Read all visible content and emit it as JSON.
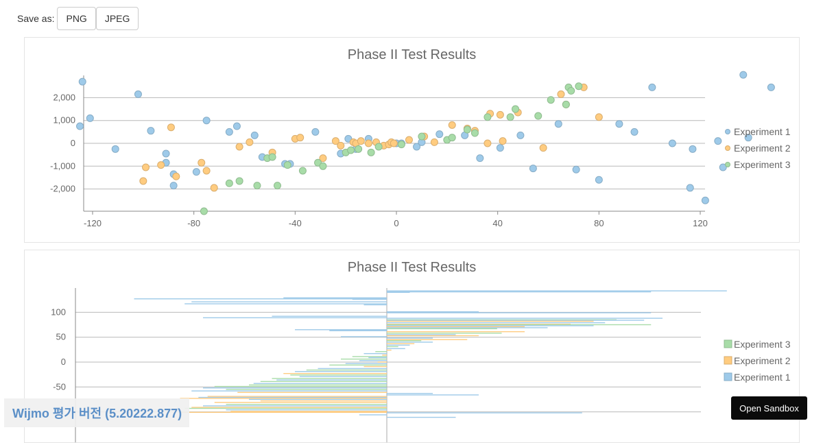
{
  "toolbar": {
    "save_label": "Save as:",
    "png_label": "PNG",
    "jpeg_label": "JPEG"
  },
  "watermark": "Wijmo 평가 버전 (5.20222.877)",
  "sandbox_label": "Open Sandbox",
  "colors": {
    "experiment1": "#9ecae9",
    "experiment2": "#ffcc80",
    "experiment3": "#a8dca8"
  },
  "chart_data": [
    {
      "type": "scatter",
      "title": "Phase II Test Results",
      "xlim": [
        -125,
        148
      ],
      "ylim": [
        -3000,
        3000
      ],
      "x_ticks": [
        "-120",
        "-80",
        "-40",
        "0",
        "40",
        "80",
        "120"
      ],
      "x_tick_values": [
        -120,
        -80,
        -40,
        0,
        40,
        80,
        120
      ],
      "y_ticks": [
        "2,000",
        "1,000",
        "0",
        "-1,000",
        "-2,000"
      ],
      "y_tick_values": [
        2000,
        1000,
        0,
        -1000,
        -2000
      ],
      "legend_position": "right",
      "series": [
        {
          "name": "Experiment 1",
          "color": "#9ecae9",
          "points": [
            [
              -124,
              2700
            ],
            [
              -125,
              750
            ],
            [
              -121,
              1100
            ],
            [
              -111,
              -250
            ],
            [
              -102,
              2150
            ],
            [
              -97,
              550
            ],
            [
              -91,
              -450
            ],
            [
              -91,
              -850
            ],
            [
              -88,
              -1850
            ],
            [
              -88,
              -1350
            ],
            [
              -79,
              -1250
            ],
            [
              -75,
              1000
            ],
            [
              -66,
              500
            ],
            [
              -63,
              750
            ],
            [
              -56,
              350
            ],
            [
              -53,
              -600
            ],
            [
              -44,
              -900
            ],
            [
              -42,
              -900
            ],
            [
              -32,
              500
            ],
            [
              -22,
              -450
            ],
            [
              -19,
              200
            ],
            [
              -16,
              -250
            ],
            [
              -11,
              200
            ],
            [
              0,
              0
            ],
            [
              2,
              0
            ],
            [
              8,
              -150
            ],
            [
              10,
              50
            ],
            [
              17,
              400
            ],
            [
              27,
              350
            ],
            [
              33,
              -650
            ],
            [
              41,
              -200
            ],
            [
              49,
              350
            ],
            [
              54,
              -1100
            ],
            [
              64,
              850
            ],
            [
              71,
              -1150
            ],
            [
              80,
              -1600
            ],
            [
              88,
              850
            ],
            [
              94,
              500
            ],
            [
              101,
              2450
            ],
            [
              109,
              0
            ],
            [
              116,
              -1950
            ],
            [
              117,
              -250
            ],
            [
              122,
              -2500
            ],
            [
              127,
              100
            ],
            [
              129,
              -1050
            ],
            [
              137,
              3000
            ],
            [
              139,
              250
            ],
            [
              148,
              2450
            ]
          ]
        },
        {
          "name": "Experiment 2",
          "color": "#ffcc80",
          "points": [
            [
              -100,
              -1650
            ],
            [
              -99,
              -1050
            ],
            [
              -93,
              -950
            ],
            [
              -89,
              700
            ],
            [
              -87,
              -1450
            ],
            [
              -77,
              -850
            ],
            [
              -75,
              -1200
            ],
            [
              -72,
              -1950
            ],
            [
              -62,
              -150
            ],
            [
              -58,
              50
            ],
            [
              -49,
              -400
            ],
            [
              -40,
              200
            ],
            [
              -38,
              250
            ],
            [
              -29,
              -650
            ],
            [
              -24,
              100
            ],
            [
              -22,
              -100
            ],
            [
              -17,
              50
            ],
            [
              -16,
              0
            ],
            [
              -14,
              100
            ],
            [
              -11,
              0
            ],
            [
              -8,
              50
            ],
            [
              -5,
              -100
            ],
            [
              -3,
              -50
            ],
            [
              -2,
              50
            ],
            [
              -1,
              0
            ],
            [
              5,
              150
            ],
            [
              11,
              300
            ],
            [
              15,
              50
            ],
            [
              22,
              800
            ],
            [
              28,
              650
            ],
            [
              31,
              550
            ],
            [
              36,
              0
            ],
            [
              37,
              1300
            ],
            [
              41,
              1250
            ],
            [
              42,
              100
            ],
            [
              48,
              1350
            ],
            [
              58,
              -200
            ],
            [
              65,
              2150
            ],
            [
              67,
              1700
            ],
            [
              74,
              2450
            ],
            [
              80,
              1150
            ]
          ]
        },
        {
          "name": "Experiment 3",
          "color": "#a8dca8",
          "points": [
            [
              -76,
              -3000
            ],
            [
              -66,
              -1750
            ],
            [
              -62,
              -1650
            ],
            [
              -55,
              -1850
            ],
            [
              -51,
              -650
            ],
            [
              -49,
              -600
            ],
            [
              -47,
              -1850
            ],
            [
              -43,
              -950
            ],
            [
              -37,
              -1200
            ],
            [
              -31,
              -850
            ],
            [
              -29,
              -1000
            ],
            [
              -20,
              -400
            ],
            [
              -18,
              -300
            ],
            [
              -15,
              -250
            ],
            [
              -10,
              -400
            ],
            [
              -7,
              -150
            ],
            [
              2,
              -50
            ],
            [
              10,
              300
            ],
            [
              20,
              150
            ],
            [
              22,
              250
            ],
            [
              28,
              600
            ],
            [
              31,
              450
            ],
            [
              36,
              1150
            ],
            [
              45,
              1150
            ],
            [
              47,
              1500
            ],
            [
              56,
              1200
            ],
            [
              61,
              1900
            ],
            [
              67,
              1700
            ],
            [
              68,
              2450
            ],
            [
              69,
              2300
            ],
            [
              72,
              2500
            ]
          ]
        }
      ]
    },
    {
      "type": "bar",
      "title": "Phase II Test Results",
      "orientation": "horizontal",
      "xlim": [
        -125,
        148
      ],
      "ylim": [
        -110,
        150
      ],
      "y_ticks": [
        "100",
        "50",
        "0",
        "-50"
      ],
      "y_tick_values": [
        100,
        50,
        0,
        -50
      ],
      "legend_position": "right",
      "series": [
        {
          "name": "Experiment 3",
          "color": "#a8dca8"
        },
        {
          "name": "Experiment 2",
          "color": "#ffcc80"
        },
        {
          "name": "Experiment 1",
          "color": "#9ecae9"
        }
      ],
      "bars": [
        [
          148,
          144,
          1
        ],
        [
          115,
          142,
          1
        ],
        [
          10,
          141,
          1
        ],
        [
          -45,
          130,
          1
        ],
        [
          -110,
          128,
          1
        ],
        [
          -15,
          127,
          1
        ],
        [
          -85,
          122,
          1
        ],
        [
          -88,
          118,
          1
        ],
        [
          -10,
          116,
          1
        ],
        [
          40,
          102,
          1
        ],
        [
          115,
          100,
          1
        ],
        [
          -50,
          93,
          1
        ],
        [
          -80,
          90,
          1
        ],
        [
          120,
          89,
          1
        ],
        [
          100,
          86,
          3
        ],
        [
          112,
          85,
          1
        ],
        [
          90,
          83,
          2
        ],
        [
          95,
          80,
          1
        ],
        [
          80,
          77,
          2
        ],
        [
          115,
          76,
          3
        ],
        [
          90,
          74,
          1
        ],
        [
          60,
          72,
          2
        ],
        [
          70,
          70,
          1
        ],
        [
          48,
          68,
          3
        ],
        [
          -40,
          66,
          1
        ],
        [
          -25,
          64,
          1
        ],
        [
          60,
          62,
          2
        ],
        [
          50,
          59,
          3
        ],
        [
          30,
          56,
          1
        ],
        [
          40,
          54,
          2
        ],
        [
          -20,
          52,
          1
        ],
        [
          20,
          49,
          1
        ],
        [
          35,
          46,
          2
        ],
        [
          15,
          44,
          3
        ],
        [
          20,
          41,
          1
        ],
        [
          12,
          38,
          2
        ],
        [
          10,
          35,
          1
        ],
        [
          5,
          32,
          3
        ],
        [
          8,
          28,
          1
        ],
        [
          2,
          25,
          2
        ],
        [
          -5,
          22,
          3
        ],
        [
          -10,
          18,
          1
        ],
        [
          -2,
          15,
          2
        ],
        [
          -15,
          12,
          3
        ],
        [
          -8,
          10,
          1
        ],
        [
          -20,
          7,
          3
        ],
        [
          -12,
          4,
          1
        ],
        [
          -4,
          1,
          2
        ],
        [
          -18,
          -2,
          1
        ],
        [
          -25,
          -5,
          3
        ],
        [
          -10,
          -8,
          2
        ],
        [
          -30,
          -12,
          1
        ],
        [
          -35,
          -15,
          3
        ],
        [
          -40,
          -18,
          1
        ],
        [
          -45,
          -22,
          2
        ],
        [
          -42,
          -25,
          3
        ],
        [
          -38,
          -28,
          1
        ],
        [
          -50,
          -32,
          3
        ],
        [
          -48,
          -35,
          1
        ],
        [
          -55,
          -38,
          3
        ],
        [
          -58,
          -42,
          1
        ],
        [
          -60,
          -45,
          3
        ],
        [
          -75,
          -48,
          3
        ],
        [
          -80,
          -51,
          1
        ],
        [
          -70,
          -54,
          3
        ],
        [
          -85,
          -57,
          1
        ],
        [
          -65,
          -60,
          2
        ],
        [
          20,
          -62,
          1
        ],
        [
          40,
          -65,
          1
        ],
        [
          -78,
          -68,
          2
        ],
        [
          -82,
          -70,
          1
        ],
        [
          -90,
          -72,
          2
        ],
        [
          -60,
          -74,
          1
        ],
        [
          -55,
          -77,
          2
        ],
        [
          -75,
          -80,
          2
        ],
        [
          -70,
          -84,
          3
        ],
        [
          -80,
          -87,
          1
        ],
        [
          -85,
          -90,
          2
        ],
        [
          -88,
          -92,
          3
        ],
        [
          -70,
          -95,
          1
        ],
        [
          -68,
          -98,
          2
        ],
        [
          -90,
          -100,
          2
        ],
        [
          85,
          -101,
          1
        ],
        [
          -12,
          -105,
          1
        ],
        [
          30,
          -110,
          1
        ]
      ]
    }
  ]
}
